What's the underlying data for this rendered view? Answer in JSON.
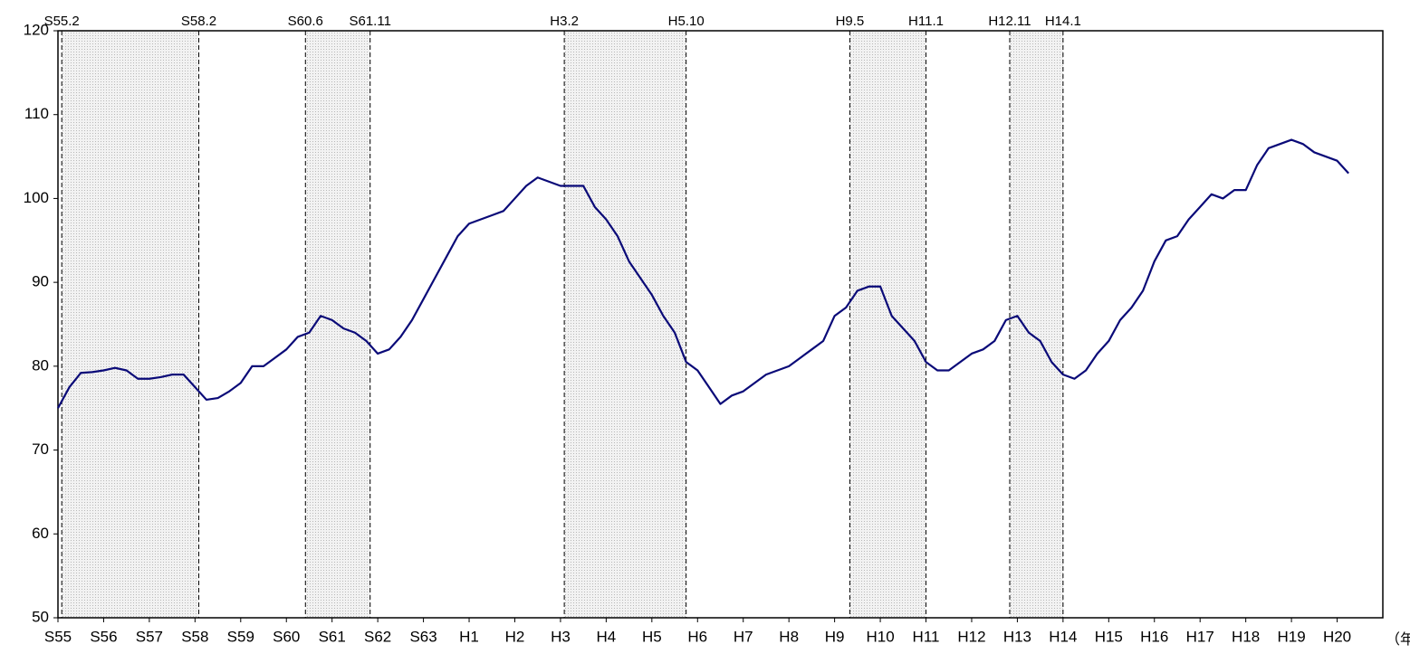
{
  "chart_data": {
    "type": "line",
    "x_label": "（年）",
    "color": "#0a0a78",
    "xlim": [
      1980,
      2009
    ],
    "xticks": [
      {
        "value": 1980,
        "label": "S55"
      },
      {
        "value": 1981,
        "label": "S56"
      },
      {
        "value": 1982,
        "label": "S57"
      },
      {
        "value": 1983,
        "label": "S58"
      },
      {
        "value": 1984,
        "label": "S59"
      },
      {
        "value": 1985,
        "label": "S60"
      },
      {
        "value": 1986,
        "label": "S61"
      },
      {
        "value": 1987,
        "label": "S62"
      },
      {
        "value": 1988,
        "label": "S63"
      },
      {
        "value": 1989,
        "label": "H1"
      },
      {
        "value": 1990,
        "label": "H2"
      },
      {
        "value": 1991,
        "label": "H3"
      },
      {
        "value": 1992,
        "label": "H4"
      },
      {
        "value": 1993,
        "label": "H5"
      },
      {
        "value": 1994,
        "label": "H6"
      },
      {
        "value": 1995,
        "label": "H7"
      },
      {
        "value": 1996,
        "label": "H8"
      },
      {
        "value": 1997,
        "label": "H9"
      },
      {
        "value": 1998,
        "label": "H10"
      },
      {
        "value": 1999,
        "label": "H11"
      },
      {
        "value": 2000,
        "label": "H12"
      },
      {
        "value": 2001,
        "label": "H13"
      },
      {
        "value": 2002,
        "label": "H14"
      },
      {
        "value": 2003,
        "label": "H15"
      },
      {
        "value": 2004,
        "label": "H16"
      },
      {
        "value": 2005,
        "label": "H17"
      },
      {
        "value": 2006,
        "label": "H18"
      },
      {
        "value": 2007,
        "label": "H19"
      },
      {
        "value": 2008,
        "label": "H20"
      }
    ],
    "ylim": [
      50,
      120
    ],
    "yticks": [
      50,
      60,
      70,
      80,
      90,
      100,
      110,
      120
    ],
    "periods": [
      {
        "start": 1980.083,
        "end": 1983.083,
        "start_label": "S55.2",
        "end_label": "S58.2"
      },
      {
        "start": 1985.417,
        "end": 1986.833,
        "start_label": "S60.6",
        "end_label": "S61.11"
      },
      {
        "start": 1991.083,
        "end": 1993.75,
        "start_label": "H3.2",
        "end_label": "H5.10"
      },
      {
        "start": 1997.333,
        "end": 1999.0,
        "start_label": "H9.5",
        "end_label": "H11.1"
      },
      {
        "start": 2000.833,
        "end": 2002.0,
        "start_label": "H12.11",
        "end_label": "H14.1"
      }
    ],
    "x": [
      1980,
      1980.25,
      1980.5,
      1980.75,
      1981,
      1981.25,
      1981.5,
      1981.75,
      1982,
      1982.25,
      1982.5,
      1982.75,
      1983,
      1983.25,
      1983.5,
      1983.75,
      1984,
      1984.25,
      1984.5,
      1984.75,
      1985,
      1985.25,
      1985.5,
      1985.75,
      1986,
      1986.25,
      1986.5,
      1986.75,
      1987,
      1987.25,
      1987.5,
      1987.75,
      1988,
      1988.25,
      1988.5,
      1988.75,
      1989,
      1989.25,
      1989.5,
      1989.75,
      1990,
      1990.25,
      1990.5,
      1990.75,
      1991,
      1991.25,
      1991.5,
      1991.75,
      1992,
      1992.25,
      1992.5,
      1992.75,
      1993,
      1993.25,
      1993.5,
      1993.75,
      1994,
      1994.25,
      1994.5,
      1994.75,
      1995,
      1995.25,
      1995.5,
      1995.75,
      1996,
      1996.25,
      1996.5,
      1996.75,
      1997,
      1997.25,
      1997.5,
      1997.75,
      1998,
      1998.25,
      1998.5,
      1998.75,
      1999,
      1999.25,
      1999.5,
      1999.75,
      2000,
      2000.25,
      2000.5,
      2000.75,
      2001,
      2001.25,
      2001.5,
      2001.75,
      2002,
      2002.25,
      2002.5,
      2002.75,
      2003,
      2003.25,
      2003.5,
      2003.75,
      2004,
      2004.25,
      2004.5,
      2004.75,
      2005,
      2005.25,
      2005.5,
      2005.75,
      2006,
      2006.25,
      2006.5,
      2006.75,
      2007,
      2007.25,
      2007.5,
      2007.75,
      2008,
      2008.25
    ],
    "values": [
      75,
      77.5,
      79.2,
      79.3,
      79.5,
      79.8,
      79.5,
      78.5,
      78.5,
      78.7,
      79,
      79,
      77.5,
      76,
      76.2,
      77,
      78,
      80,
      80,
      81,
      82,
      83.5,
      84,
      86,
      85.5,
      84.5,
      84,
      83,
      81.5,
      82,
      83.5,
      85.5,
      88,
      90.5,
      93,
      95.5,
      97,
      97.5,
      98,
      98.5,
      100,
      101.5,
      102.5,
      102,
      101.5,
      101.5,
      101.5,
      99,
      97.5,
      95.5,
      92.5,
      90.5,
      88.5,
      86,
      84,
      80.5,
      79.5,
      77.5,
      75.5,
      76.5,
      77,
      78,
      79,
      79.5,
      80,
      81,
      82,
      83,
      86,
      87,
      89,
      89.5,
      89.5,
      86,
      84.5,
      83,
      80.5,
      79.5,
      79.5,
      80.5,
      81.5,
      82,
      83,
      85.5,
      86,
      84,
      83,
      80.5,
      79,
      78.5,
      79.5,
      81.5,
      83,
      85.5,
      87,
      89,
      92.5,
      95,
      95.5,
      97.5,
      99,
      100.5,
      100,
      101,
      101,
      104,
      106,
      106.5,
      107,
      106.5,
      105.5,
      105,
      104.5,
      103
    ]
  }
}
